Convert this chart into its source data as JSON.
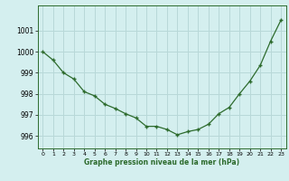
{
  "x": [
    0,
    1,
    2,
    3,
    4,
    5,
    6,
    7,
    8,
    9,
    10,
    11,
    12,
    13,
    14,
    15,
    16,
    17,
    18,
    19,
    20,
    21,
    22,
    23
  ],
  "y": [
    1000.0,
    999.6,
    999.0,
    998.7,
    998.1,
    997.9,
    997.5,
    997.3,
    997.05,
    996.85,
    996.45,
    996.45,
    996.3,
    996.05,
    996.2,
    996.3,
    996.55,
    997.05,
    997.35,
    998.0,
    998.6,
    999.35,
    1000.5,
    1001.5
  ],
  "xlabel": "Graphe pression niveau de la mer (hPa)",
  "bg_color": "#d4efef",
  "line_color": "#2d6b2d",
  "marker_color": "#2d6b2d",
  "grid_color": "#b8d8d8",
  "yticks": [
    996,
    997,
    998,
    999,
    1000,
    1001
  ],
  "xticks": [
    0,
    1,
    2,
    3,
    4,
    5,
    6,
    7,
    8,
    9,
    10,
    11,
    12,
    13,
    14,
    15,
    16,
    17,
    18,
    19,
    20,
    21,
    22,
    23
  ],
  "xlim": [
    -0.5,
    23.5
  ],
  "ylim": [
    995.4,
    1002.2
  ]
}
